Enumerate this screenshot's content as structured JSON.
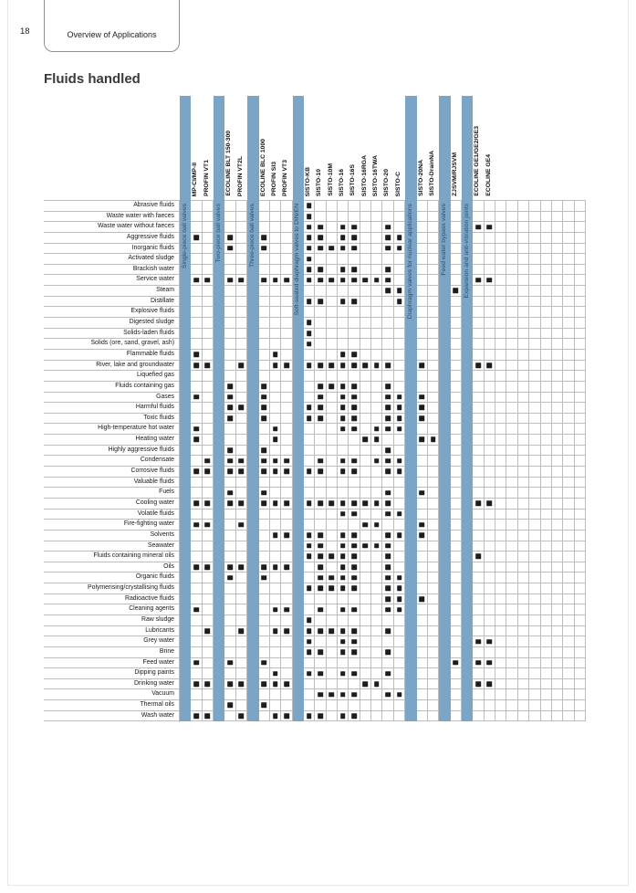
{
  "page": {
    "number": "18",
    "tab_title": "Overview of Applications",
    "heading": "Fluids handled"
  },
  "colors": {
    "bar": "#7BA4C6",
    "bar_text": "#2d4f6b",
    "mark": "#1d1d1d",
    "grid_line": "#bdbdbd"
  },
  "matrix": {
    "columns": [
      {
        "type": "bar",
        "label": "Single-piece ball valves"
      },
      {
        "type": "product",
        "label": "MP-CI/MP-II"
      },
      {
        "type": "product",
        "label": "PROFIN VT1"
      },
      {
        "type": "bar",
        "label": "Two-piece ball valves"
      },
      {
        "type": "product",
        "label": "ECOLINE BLT 150-300"
      },
      {
        "type": "product",
        "label": "PROFIN VT2L"
      },
      {
        "type": "bar",
        "label": "Three-piece ball valves"
      },
      {
        "type": "product",
        "label": "ECOLINE BLC 1000"
      },
      {
        "type": "product",
        "label": "PROFIN SI3"
      },
      {
        "type": "product",
        "label": "PROFIN VT3"
      },
      {
        "type": "bar",
        "label": "Soft-seated diaphragm valves to DIN/EN"
      },
      {
        "type": "product",
        "label": "SISTO-KB"
      },
      {
        "type": "product",
        "label": "SISTO-10"
      },
      {
        "type": "product",
        "label": "SISTO-10M"
      },
      {
        "type": "product",
        "label": "SISTO-16"
      },
      {
        "type": "product",
        "label": "SISTO-16S"
      },
      {
        "type": "product",
        "label": "SISTO-16RGA"
      },
      {
        "type": "product",
        "label": "SISTO-16TWA"
      },
      {
        "type": "product",
        "label": "SISTO-20"
      },
      {
        "type": "product",
        "label": "SISTO-C"
      },
      {
        "type": "bar",
        "label": "Diaphragm valves for nuclear applications"
      },
      {
        "type": "product",
        "label": "SISTO-20NA"
      },
      {
        "type": "product",
        "label": "SISTO-DrainNA"
      },
      {
        "type": "bar",
        "label": "Feed water bypass valves"
      },
      {
        "type": "product",
        "label": "ZJSVM/RJSVM"
      },
      {
        "type": "bar",
        "label": "Expansion and anti-vibration joints"
      },
      {
        "type": "product",
        "label": "ECOLINE GE1/GE2/GE3"
      },
      {
        "type": "product",
        "label": "ECOLINE GE4"
      },
      {
        "type": "empty",
        "label": ""
      },
      {
        "type": "empty",
        "label": ""
      },
      {
        "type": "empty",
        "label": ""
      },
      {
        "type": "empty",
        "label": ""
      },
      {
        "type": "empty",
        "label": ""
      },
      {
        "type": "empty",
        "label": ""
      },
      {
        "type": "empty",
        "label": ""
      },
      {
        "type": "empty",
        "label": ""
      }
    ],
    "rows": [
      {
        "label": "Abrasive fluids",
        "marks": [
          11
        ]
      },
      {
        "label": "Waste water with faeces",
        "marks": [
          11
        ]
      },
      {
        "label": "Waste water without faeces",
        "marks": [
          11,
          12,
          14,
          15,
          18,
          26,
          27
        ]
      },
      {
        "label": "Aggressive fluids",
        "marks": [
          1,
          4,
          7,
          11,
          12,
          14,
          15,
          18,
          19
        ]
      },
      {
        "label": "Inorganic fluids",
        "marks": [
          4,
          7,
          11,
          12,
          13,
          14,
          15,
          18,
          19
        ]
      },
      {
        "label": "Activated sludge",
        "marks": [
          11
        ]
      },
      {
        "label": "Brackish water",
        "marks": [
          11,
          12,
          14,
          15,
          18
        ]
      },
      {
        "label": "Service water",
        "marks": [
          1,
          2,
          4,
          5,
          7,
          8,
          9,
          11,
          12,
          13,
          14,
          15,
          16,
          17,
          18,
          26,
          27
        ]
      },
      {
        "label": "Steam",
        "marks": [
          18,
          19,
          24
        ]
      },
      {
        "label": "Distillate",
        "marks": [
          11,
          12,
          14,
          15,
          19
        ]
      },
      {
        "label": "Explosive fluids",
        "marks": []
      },
      {
        "label": "Digested sludge",
        "marks": [
          11
        ]
      },
      {
        "label": "Solids-laden fluids",
        "marks": [
          11
        ]
      },
      {
        "label": "Solids (ore, sand, gravel, ash)",
        "marks": [
          11
        ]
      },
      {
        "label": "Flammable fluids",
        "marks": [
          1,
          8,
          14,
          15
        ]
      },
      {
        "label": "River, lake and groundwater",
        "marks": [
          1,
          2,
          5,
          8,
          9,
          11,
          12,
          13,
          14,
          15,
          16,
          17,
          18,
          21,
          26,
          27
        ]
      },
      {
        "label": "Liquefied gas",
        "marks": []
      },
      {
        "label": "Fluids containing gas",
        "marks": [
          4,
          7,
          12,
          13,
          14,
          15,
          18
        ]
      },
      {
        "label": "Gases",
        "marks": [
          1,
          4,
          7,
          12,
          14,
          15,
          18,
          19,
          21
        ]
      },
      {
        "label": "Harmful fluids",
        "marks": [
          4,
          5,
          7,
          11,
          12,
          14,
          15,
          18,
          19,
          21
        ]
      },
      {
        "label": "Toxic fluids",
        "marks": [
          4,
          7,
          11,
          12,
          14,
          15,
          18,
          19,
          21
        ]
      },
      {
        "label": "High-temperature hot water",
        "marks": [
          1,
          8,
          14,
          15,
          17,
          18,
          19
        ]
      },
      {
        "label": "Heating water",
        "marks": [
          1,
          8,
          16,
          17,
          21,
          22
        ]
      },
      {
        "label": "Highly aggressive fluids",
        "marks": [
          4,
          7,
          18
        ]
      },
      {
        "label": "Condensate",
        "marks": [
          2,
          4,
          5,
          7,
          8,
          9,
          12,
          14,
          15,
          17,
          18,
          19
        ]
      },
      {
        "label": "Corrosive fluids",
        "marks": [
          1,
          2,
          4,
          5,
          7,
          8,
          9,
          11,
          12,
          14,
          15,
          18,
          19
        ]
      },
      {
        "label": "Valuable fluids",
        "marks": []
      },
      {
        "label": "Fuels",
        "marks": [
          4,
          7,
          18,
          21
        ]
      },
      {
        "label": "Cooling water",
        "marks": [
          1,
          2,
          4,
          5,
          7,
          8,
          9,
          11,
          12,
          13,
          14,
          15,
          16,
          17,
          18,
          26,
          27
        ]
      },
      {
        "label": "Volatile fluids",
        "marks": [
          14,
          15,
          18,
          19
        ]
      },
      {
        "label": "Fire-fighting water",
        "marks": [
          1,
          2,
          5,
          16,
          17,
          21
        ]
      },
      {
        "label": "Solvents",
        "marks": [
          8,
          9,
          11,
          12,
          14,
          15,
          18,
          19,
          21
        ]
      },
      {
        "label": "Seawater",
        "marks": [
          11,
          12,
          14,
          15,
          16,
          17,
          18
        ]
      },
      {
        "label": "Fluids containing mineral oils",
        "marks": [
          11,
          12,
          13,
          14,
          15,
          18,
          26
        ]
      },
      {
        "label": "Oils",
        "marks": [
          1,
          2,
          4,
          5,
          7,
          8,
          9,
          12,
          14,
          15,
          18
        ]
      },
      {
        "label": "Organic fluids",
        "marks": [
          4,
          7,
          12,
          13,
          14,
          15,
          18,
          19
        ]
      },
      {
        "label": "Polymerising/crystallising fluids",
        "marks": [
          11,
          12,
          13,
          14,
          15,
          18,
          19
        ]
      },
      {
        "label": "Radioactive fluids",
        "marks": [
          18,
          19,
          21
        ]
      },
      {
        "label": "Cleaning agents",
        "marks": [
          1,
          8,
          9,
          12,
          14,
          15,
          18,
          19
        ]
      },
      {
        "label": "Raw sludge",
        "marks": [
          11
        ]
      },
      {
        "label": "Lubricants",
        "marks": [
          2,
          5,
          8,
          9,
          11,
          12,
          13,
          14,
          15,
          18
        ]
      },
      {
        "label": "Grey water",
        "marks": [
          11,
          14,
          15,
          26,
          27
        ]
      },
      {
        "label": "Brine",
        "marks": [
          11,
          12,
          14,
          15,
          18
        ]
      },
      {
        "label": "Feed water",
        "marks": [
          1,
          4,
          7,
          24,
          26,
          27
        ]
      },
      {
        "label": "Dipping paints",
        "marks": [
          8,
          11,
          12,
          14,
          15,
          18
        ]
      },
      {
        "label": "Drinking water",
        "marks": [
          1,
          2,
          4,
          5,
          7,
          8,
          9,
          16,
          17,
          26,
          27
        ]
      },
      {
        "label": "Vacuum",
        "marks": [
          12,
          13,
          14,
          15,
          18,
          19
        ]
      },
      {
        "label": "Thermal oils",
        "marks": [
          4,
          7
        ]
      },
      {
        "label": "Wash water",
        "marks": [
          1,
          2,
          5,
          8,
          9,
          11,
          12,
          14,
          15
        ]
      }
    ]
  }
}
